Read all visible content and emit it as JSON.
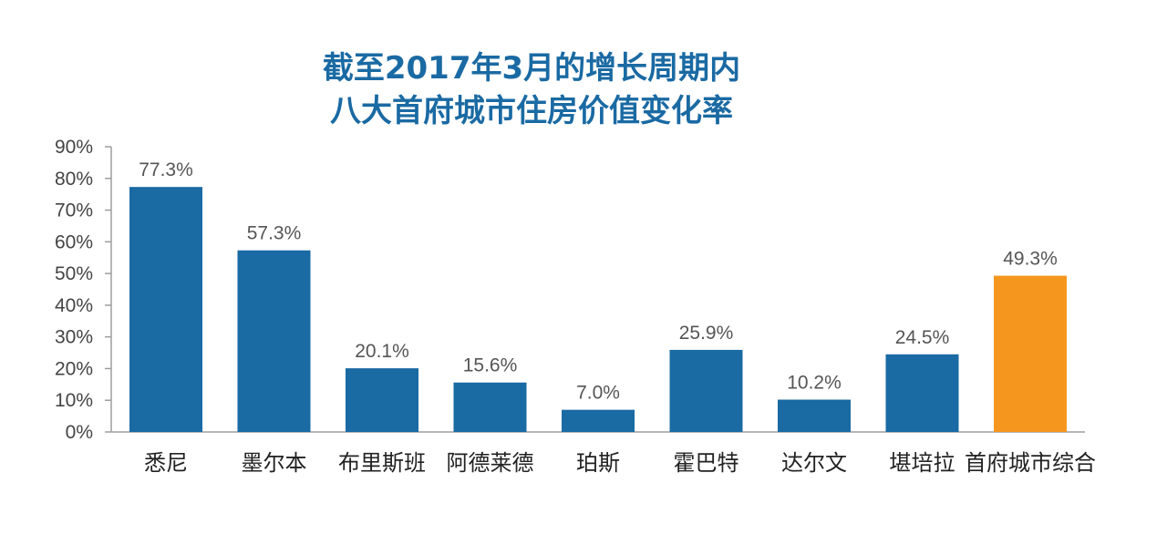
{
  "chart_data": {
    "type": "bar",
    "title_lines": [
      "截至2017年3月的增长周期内",
      "八大首府城市住房价值变化率"
    ],
    "categories": [
      "悉尼",
      "墨尔本",
      "布里斯班",
      "阿德莱德",
      "珀斯",
      "霍巴特",
      "达尔文",
      "堪培拉",
      "首府城市综合"
    ],
    "values": [
      77.3,
      57.3,
      20.1,
      15.6,
      7.0,
      25.9,
      10.2,
      24.5,
      49.3
    ],
    "data_labels": [
      "77.3%",
      "57.3%",
      "20.1%",
      "15.6%",
      "7.0%",
      "25.9%",
      "10.2%",
      "24.5%",
      "49.3%"
    ],
    "y_ticks": [
      "0%",
      "10%",
      "20%",
      "30%",
      "40%",
      "50%",
      "60%",
      "70%",
      "80%",
      "90%"
    ],
    "ylim": [
      0,
      90
    ],
    "grid": false,
    "colors": {
      "bar": "#1a6aa3",
      "highlight_bar": "#f5961f",
      "title": "#1a6aa3",
      "axis": "#9e9e9e"
    },
    "highlight_index": 8
  }
}
